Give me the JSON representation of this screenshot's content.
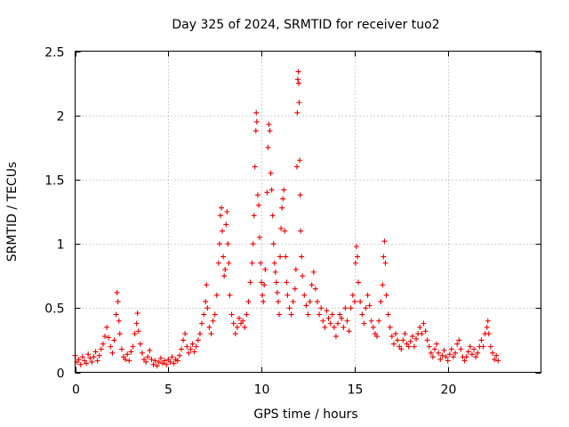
{
  "chart_data": {
    "type": "scatter",
    "title": "Day 325 of 2024, SRMTID for receiver tuo2",
    "xlabel": "GPS time / hours",
    "ylabel": "SRMTID / TECUs",
    "xlim": [
      0,
      25
    ],
    "ylim": [
      0,
      2.5
    ],
    "x_ticks": [
      0,
      5,
      10,
      15,
      20
    ],
    "x_tick_labels": [
      "0",
      "5",
      "10",
      "15",
      "20"
    ],
    "y_ticks": [
      0,
      0.5,
      1,
      1.5,
      2,
      2.5
    ],
    "y_tick_labels": [
      "0",
      "0.5",
      "1",
      "1.5",
      "2",
      "2.5"
    ],
    "grid": true,
    "marker": "+",
    "series": [
      {
        "name": "SRMTID",
        "color": "#e60000",
        "points": [
          [
            0.0,
            0.13
          ],
          [
            0.1,
            0.08
          ],
          [
            0.2,
            0.1
          ],
          [
            0.3,
            0.06
          ],
          [
            0.4,
            0.12
          ],
          [
            0.5,
            0.09
          ],
          [
            0.6,
            0.07
          ],
          [
            0.7,
            0.14
          ],
          [
            0.8,
            0.11
          ],
          [
            0.9,
            0.08
          ],
          [
            1.0,
            0.12
          ],
          [
            1.1,
            0.16
          ],
          [
            1.2,
            0.09
          ],
          [
            1.3,
            0.13
          ],
          [
            1.4,
            0.18
          ],
          [
            1.5,
            0.22
          ],
          [
            1.6,
            0.28
          ],
          [
            1.7,
            0.35
          ],
          [
            1.8,
            0.27
          ],
          [
            1.9,
            0.2
          ],
          [
            2.0,
            0.15
          ],
          [
            2.1,
            0.25
          ],
          [
            2.2,
            0.45
          ],
          [
            2.25,
            0.62
          ],
          [
            2.3,
            0.55
          ],
          [
            2.35,
            0.4
          ],
          [
            2.4,
            0.3
          ],
          [
            2.5,
            0.18
          ],
          [
            2.6,
            0.12
          ],
          [
            2.7,
            0.1
          ],
          [
            2.8,
            0.14
          ],
          [
            2.9,
            0.09
          ],
          [
            3.0,
            0.16
          ],
          [
            3.1,
            0.2
          ],
          [
            3.2,
            0.3
          ],
          [
            3.3,
            0.38
          ],
          [
            3.35,
            0.46
          ],
          [
            3.4,
            0.32
          ],
          [
            3.5,
            0.22
          ],
          [
            3.6,
            0.15
          ],
          [
            3.7,
            0.1
          ],
          [
            3.8,
            0.08
          ],
          [
            3.9,
            0.12
          ],
          [
            4.0,
            0.17
          ],
          [
            4.1,
            0.1
          ],
          [
            4.2,
            0.06
          ],
          [
            4.3,
            0.09
          ],
          [
            4.4,
            0.05
          ],
          [
            4.5,
            0.08
          ],
          [
            4.6,
            0.11
          ],
          [
            4.7,
            0.07
          ],
          [
            4.8,
            0.09
          ],
          [
            4.9,
            0.06
          ],
          [
            5.0,
            0.1
          ],
          [
            5.1,
            0.08
          ],
          [
            5.2,
            0.12
          ],
          [
            5.3,
            0.07
          ],
          [
            5.4,
            0.1
          ],
          [
            5.5,
            0.09
          ],
          [
            5.6,
            0.13
          ],
          [
            5.7,
            0.18
          ],
          [
            5.8,
            0.25
          ],
          [
            5.9,
            0.3
          ],
          [
            6.0,
            0.2
          ],
          [
            6.1,
            0.15
          ],
          [
            6.2,
            0.18
          ],
          [
            6.3,
            0.22
          ],
          [
            6.4,
            0.16
          ],
          [
            6.5,
            0.2
          ],
          [
            6.6,
            0.25
          ],
          [
            6.7,
            0.3
          ],
          [
            6.8,
            0.38
          ],
          [
            6.9,
            0.45
          ],
          [
            7.0,
            0.55
          ],
          [
            7.05,
            0.68
          ],
          [
            7.1,
            0.5
          ],
          [
            7.2,
            0.35
          ],
          [
            7.3,
            0.3
          ],
          [
            7.4,
            0.4
          ],
          [
            7.5,
            0.45
          ],
          [
            7.6,
            0.6
          ],
          [
            7.7,
            0.85
          ],
          [
            7.75,
            1.0
          ],
          [
            7.8,
            1.22
          ],
          [
            7.85,
            1.28
          ],
          [
            7.9,
            1.1
          ],
          [
            7.95,
            0.9
          ],
          [
            8.0,
            0.75
          ],
          [
            8.05,
            0.8
          ],
          [
            8.1,
            1.15
          ],
          [
            8.15,
            1.25
          ],
          [
            8.2,
            1.0
          ],
          [
            8.25,
            0.85
          ],
          [
            8.3,
            0.6
          ],
          [
            8.4,
            0.45
          ],
          [
            8.5,
            0.38
          ],
          [
            8.6,
            0.3
          ],
          [
            8.7,
            0.35
          ],
          [
            8.8,
            0.42
          ],
          [
            8.9,
            0.38
          ],
          [
            9.0,
            0.4
          ],
          [
            9.1,
            0.35
          ],
          [
            9.2,
            0.45
          ],
          [
            9.3,
            0.55
          ],
          [
            9.4,
            0.7
          ],
          [
            9.5,
            0.85
          ],
          [
            9.55,
            1.0
          ],
          [
            9.6,
            1.22
          ],
          [
            9.65,
            1.6
          ],
          [
            9.7,
            1.88
          ],
          [
            9.72,
            2.02
          ],
          [
            9.75,
            1.95
          ],
          [
            9.8,
            1.38
          ],
          [
            9.85,
            1.3
          ],
          [
            9.9,
            1.05
          ],
          [
            9.95,
            0.85
          ],
          [
            10.0,
            0.7
          ],
          [
            10.05,
            0.6
          ],
          [
            10.1,
            0.55
          ],
          [
            10.15,
            0.68
          ],
          [
            10.2,
            0.8
          ],
          [
            10.3,
            1.4
          ],
          [
            10.35,
            1.75
          ],
          [
            10.4,
            1.93
          ],
          [
            10.45,
            1.88
          ],
          [
            10.5,
            1.55
          ],
          [
            10.55,
            1.42
          ],
          [
            10.6,
            1.22
          ],
          [
            10.65,
            1.0
          ],
          [
            10.7,
            0.85
          ],
          [
            10.75,
            0.78
          ],
          [
            10.8,
            0.7
          ],
          [
            10.85,
            0.62
          ],
          [
            10.9,
            0.55
          ],
          [
            10.95,
            0.45
          ],
          [
            11.0,
            0.9
          ],
          [
            11.05,
            1.12
          ],
          [
            11.1,
            1.28
          ],
          [
            11.15,
            1.35
          ],
          [
            11.2,
            1.42
          ],
          [
            11.25,
            1.1
          ],
          [
            11.3,
            0.9
          ],
          [
            11.35,
            0.7
          ],
          [
            11.4,
            0.6
          ],
          [
            11.5,
            0.5
          ],
          [
            11.6,
            0.45
          ],
          [
            11.7,
            0.55
          ],
          [
            11.8,
            0.65
          ],
          [
            11.85,
            0.8
          ],
          [
            11.9,
            1.6
          ],
          [
            11.92,
            2.02
          ],
          [
            11.95,
            2.28
          ],
          [
            11.98,
            2.34
          ],
          [
            12.0,
            2.25
          ],
          [
            12.02,
            2.1
          ],
          [
            12.05,
            1.65
          ],
          [
            12.08,
            1.38
          ],
          [
            12.1,
            1.1
          ],
          [
            12.15,
            0.9
          ],
          [
            12.2,
            0.75
          ],
          [
            12.3,
            0.6
          ],
          [
            12.4,
            0.52
          ],
          [
            12.5,
            0.45
          ],
          [
            12.6,
            0.55
          ],
          [
            12.7,
            0.68
          ],
          [
            12.8,
            0.78
          ],
          [
            12.9,
            0.65
          ],
          [
            13.0,
            0.55
          ],
          [
            13.1,
            0.45
          ],
          [
            13.2,
            0.5
          ],
          [
            13.3,
            0.4
          ],
          [
            13.4,
            0.35
          ],
          [
            13.5,
            0.48
          ],
          [
            13.6,
            0.42
          ],
          [
            13.7,
            0.38
          ],
          [
            13.8,
            0.45
          ],
          [
            13.9,
            0.35
          ],
          [
            14.0,
            0.28
          ],
          [
            14.1,
            0.38
          ],
          [
            14.2,
            0.45
          ],
          [
            14.3,
            0.42
          ],
          [
            14.4,
            0.35
          ],
          [
            14.5,
            0.5
          ],
          [
            14.6,
            0.4
          ],
          [
            14.7,
            0.32
          ],
          [
            14.8,
            0.5
          ],
          [
            14.9,
            0.6
          ],
          [
            15.0,
            0.55
          ],
          [
            15.05,
            0.85
          ],
          [
            15.1,
            0.98
          ],
          [
            15.15,
            0.9
          ],
          [
            15.2,
            0.7
          ],
          [
            15.3,
            0.55
          ],
          [
            15.4,
            0.45
          ],
          [
            15.5,
            0.38
          ],
          [
            15.6,
            0.5
          ],
          [
            15.7,
            0.6
          ],
          [
            15.8,
            0.52
          ],
          [
            15.9,
            0.4
          ],
          [
            16.0,
            0.35
          ],
          [
            16.1,
            0.3
          ],
          [
            16.2,
            0.28
          ],
          [
            16.3,
            0.4
          ],
          [
            16.4,
            0.55
          ],
          [
            16.5,
            0.68
          ],
          [
            16.55,
            0.9
          ],
          [
            16.6,
            1.02
          ],
          [
            16.65,
            0.85
          ],
          [
            16.7,
            0.6
          ],
          [
            16.8,
            0.45
          ],
          [
            16.9,
            0.35
          ],
          [
            17.0,
            0.28
          ],
          [
            17.1,
            0.22
          ],
          [
            17.2,
            0.3
          ],
          [
            17.3,
            0.25
          ],
          [
            17.4,
            0.2
          ],
          [
            17.5,
            0.18
          ],
          [
            17.6,
            0.25
          ],
          [
            17.7,
            0.3
          ],
          [
            17.8,
            0.22
          ],
          [
            17.9,
            0.2
          ],
          [
            18.0,
            0.24
          ],
          [
            18.1,
            0.28
          ],
          [
            18.2,
            0.2
          ],
          [
            18.3,
            0.26
          ],
          [
            18.4,
            0.3
          ],
          [
            18.5,
            0.35
          ],
          [
            18.6,
            0.3
          ],
          [
            18.7,
            0.38
          ],
          [
            18.8,
            0.32
          ],
          [
            18.9,
            0.25
          ],
          [
            19.0,
            0.2
          ],
          [
            19.1,
            0.15
          ],
          [
            19.2,
            0.12
          ],
          [
            19.3,
            0.18
          ],
          [
            19.4,
            0.22
          ],
          [
            19.5,
            0.15
          ],
          [
            19.6,
            0.1
          ],
          [
            19.7,
            0.13
          ],
          [
            19.8,
            0.17
          ],
          [
            19.9,
            0.12
          ],
          [
            20.0,
            0.09
          ],
          [
            20.1,
            0.14
          ],
          [
            20.2,
            0.18
          ],
          [
            20.3,
            0.12
          ],
          [
            20.4,
            0.15
          ],
          [
            20.5,
            0.22
          ],
          [
            20.6,
            0.25
          ],
          [
            20.7,
            0.18
          ],
          [
            20.8,
            0.12
          ],
          [
            20.9,
            0.09
          ],
          [
            21.0,
            0.12
          ],
          [
            21.1,
            0.16
          ],
          [
            21.2,
            0.2
          ],
          [
            21.3,
            0.14
          ],
          [
            21.4,
            0.18
          ],
          [
            21.5,
            0.12
          ],
          [
            21.6,
            0.15
          ],
          [
            21.7,
            0.2
          ],
          [
            21.8,
            0.25
          ],
          [
            21.9,
            0.2
          ],
          [
            22.0,
            0.3
          ],
          [
            22.1,
            0.35
          ],
          [
            22.15,
            0.4
          ],
          [
            22.2,
            0.3
          ],
          [
            22.3,
            0.2
          ],
          [
            22.4,
            0.15
          ],
          [
            22.5,
            0.1
          ],
          [
            22.6,
            0.13
          ],
          [
            22.7,
            0.09
          ]
        ]
      }
    ]
  }
}
